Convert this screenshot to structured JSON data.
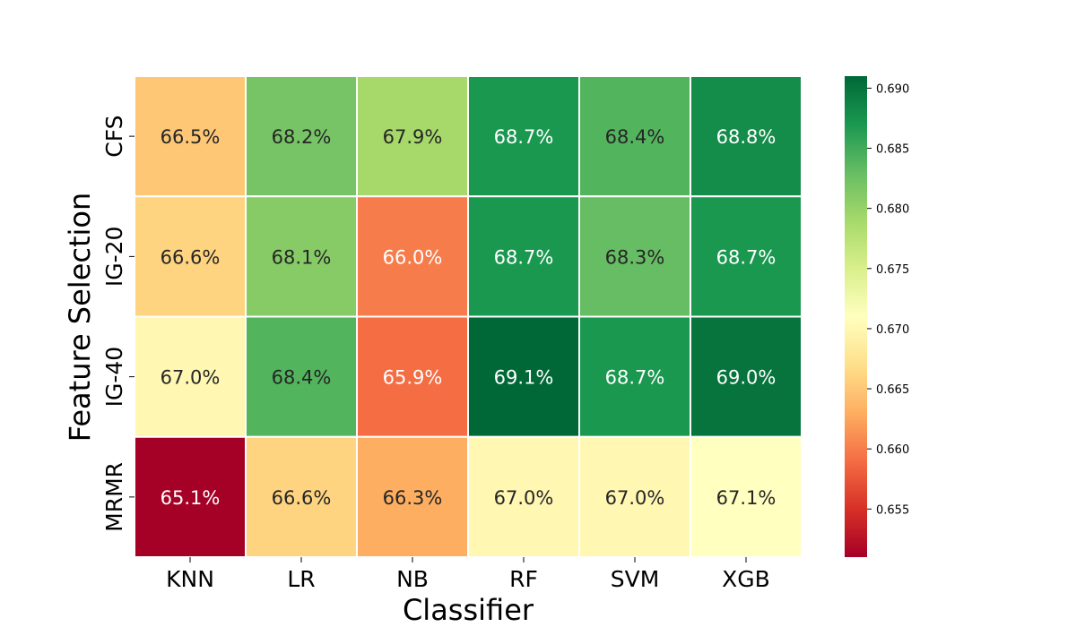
{
  "chart_data": {
    "type": "heatmap",
    "xlabel": "Classifier",
    "ylabel": "Feature Selection",
    "x_categories": [
      "KNN",
      "LR",
      "NB",
      "RF",
      "SVM",
      "XGB"
    ],
    "y_categories": [
      "CFS",
      "IG-20",
      "IG-40",
      "MRMR"
    ],
    "values": [
      [
        0.665,
        0.682,
        0.679,
        0.687,
        0.684,
        0.688
      ],
      [
        0.666,
        0.681,
        0.66,
        0.687,
        0.683,
        0.687
      ],
      [
        0.67,
        0.684,
        0.659,
        0.691,
        0.687,
        0.69
      ],
      [
        0.651,
        0.666,
        0.663,
        0.67,
        0.67,
        0.671
      ]
    ],
    "cell_labels": [
      [
        "66.5%",
        "68.2%",
        "67.9%",
        "68.7%",
        "68.4%",
        "68.8%"
      ],
      [
        "66.6%",
        "68.1%",
        "66.0%",
        "68.7%",
        "68.3%",
        "68.7%"
      ],
      [
        "67.0%",
        "68.4%",
        "65.9%",
        "69.1%",
        "68.7%",
        "69.0%"
      ],
      [
        "65.1%",
        "66.6%",
        "66.3%",
        "67.0%",
        "67.0%",
        "67.1%"
      ]
    ],
    "colormap": "RdYlGn",
    "colorbar": {
      "vmin": 0.651,
      "vmax": 0.691,
      "ticks": [
        0.655,
        0.66,
        0.665,
        0.67,
        0.675,
        0.68,
        0.685,
        0.69
      ],
      "tick_labels": [
        "0.655",
        "0.660",
        "0.665",
        "0.670",
        "0.675",
        "0.680",
        "0.685",
        "0.690"
      ]
    },
    "cell_border_color": "#ffffff"
  }
}
